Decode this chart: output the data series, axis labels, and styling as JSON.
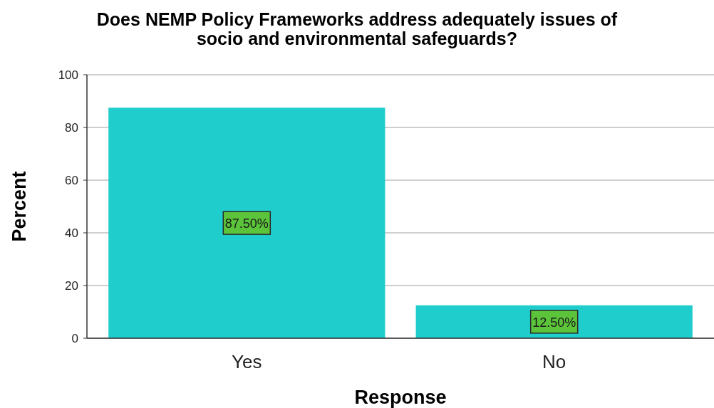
{
  "chart_data": {
    "type": "bar",
    "title": "Does NEMP Policy Frameworks address adequately issues of socio and environmental safeguards?",
    "xlabel": "Response",
    "ylabel": "Percent",
    "categories": [
      "Yes",
      "No"
    ],
    "values": [
      87.5,
      12.5
    ],
    "color": "#1fcecc",
    "value_labels": [
      "87.50%",
      "12.50%"
    ],
    "ylim": [
      0,
      100
    ],
    "yticks": [
      0,
      20,
      40,
      60,
      80,
      100
    ],
    "grid": "y"
  }
}
